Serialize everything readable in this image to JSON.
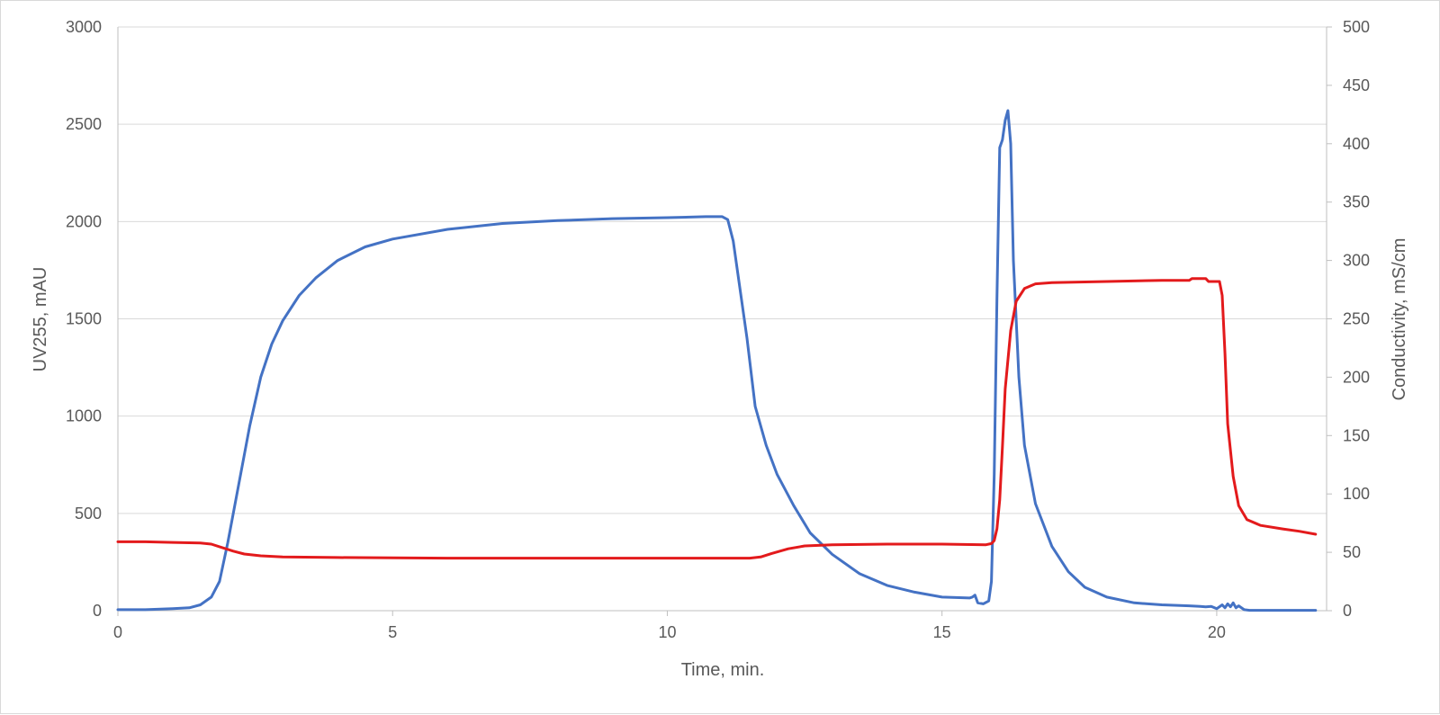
{
  "chart_data": {
    "type": "line",
    "title": "",
    "xlabel": "Time, min.",
    "ylabel_left": "UV255, mAU",
    "ylabel_right": "Conductivity, mS/cm",
    "xlim": [
      0,
      22
    ],
    "ylim_left": [
      0,
      3000
    ],
    "ylim_right": [
      0,
      500
    ],
    "x_ticks": [
      "0",
      "5",
      "10",
      "15",
      "20"
    ],
    "y_left_ticks": [
      "0",
      "500",
      "1000",
      "1500",
      "2000",
      "2500",
      "3000"
    ],
    "y_right_ticks": [
      "0",
      "50",
      "100",
      "150",
      "200",
      "250",
      "300",
      "350",
      "400",
      "450",
      "500"
    ],
    "grid": "horizontal",
    "legend": "none",
    "series": [
      {
        "axis": "left",
        "color": "#4472C4",
        "points": [
          [
            0,
            5
          ],
          [
            0.5,
            5
          ],
          [
            1,
            10
          ],
          [
            1.3,
            15
          ],
          [
            1.5,
            30
          ],
          [
            1.7,
            70
          ],
          [
            1.85,
            150
          ],
          [
            2.0,
            350
          ],
          [
            2.2,
            650
          ],
          [
            2.4,
            950
          ],
          [
            2.6,
            1200
          ],
          [
            2.8,
            1370
          ],
          [
            3.0,
            1490
          ],
          [
            3.3,
            1620
          ],
          [
            3.6,
            1710
          ],
          [
            4.0,
            1800
          ],
          [
            4.5,
            1870
          ],
          [
            5.0,
            1910
          ],
          [
            6.0,
            1960
          ],
          [
            7.0,
            1990
          ],
          [
            8.0,
            2005
          ],
          [
            9.0,
            2015
          ],
          [
            10.0,
            2020
          ],
          [
            10.7,
            2025
          ],
          [
            11.0,
            2025
          ],
          [
            11.1,
            2010
          ],
          [
            11.2,
            1900
          ],
          [
            11.3,
            1700
          ],
          [
            11.45,
            1400
          ],
          [
            11.6,
            1050
          ],
          [
            11.8,
            850
          ],
          [
            12.0,
            700
          ],
          [
            12.3,
            540
          ],
          [
            12.6,
            400
          ],
          [
            13.0,
            290
          ],
          [
            13.5,
            190
          ],
          [
            14.0,
            130
          ],
          [
            14.5,
            95
          ],
          [
            15.0,
            70
          ],
          [
            15.5,
            65
          ],
          [
            15.55,
            70
          ],
          [
            15.6,
            80
          ],
          [
            15.65,
            40
          ],
          [
            15.75,
            35
          ],
          [
            15.85,
            50
          ],
          [
            15.9,
            150
          ],
          [
            15.95,
            700
          ],
          [
            16.0,
            1600
          ],
          [
            16.05,
            2380
          ],
          [
            16.1,
            2420
          ],
          [
            16.15,
            2520
          ],
          [
            16.2,
            2570
          ],
          [
            16.25,
            2400
          ],
          [
            16.3,
            1800
          ],
          [
            16.4,
            1200
          ],
          [
            16.5,
            850
          ],
          [
            16.7,
            550
          ],
          [
            17.0,
            330
          ],
          [
            17.3,
            200
          ],
          [
            17.6,
            120
          ],
          [
            18.0,
            70
          ],
          [
            18.5,
            40
          ],
          [
            19.0,
            30
          ],
          [
            19.5,
            25
          ],
          [
            19.7,
            22
          ],
          [
            19.8,
            20
          ],
          [
            19.9,
            22
          ],
          [
            20.0,
            10
          ],
          [
            20.1,
            30
          ],
          [
            20.15,
            15
          ],
          [
            20.2,
            35
          ],
          [
            20.25,
            20
          ],
          [
            20.3,
            40
          ],
          [
            20.35,
            15
          ],
          [
            20.4,
            25
          ],
          [
            20.5,
            5
          ],
          [
            20.6,
            2
          ],
          [
            21.0,
            2
          ],
          [
            21.8,
            2
          ]
        ]
      },
      {
        "axis": "right",
        "color": "#E31A1C",
        "points": [
          [
            0,
            59
          ],
          [
            0.5,
            59
          ],
          [
            1.0,
            58.5
          ],
          [
            1.5,
            58
          ],
          [
            1.7,
            57
          ],
          [
            1.9,
            54
          ],
          [
            2.1,
            51
          ],
          [
            2.3,
            48.5
          ],
          [
            2.6,
            47
          ],
          [
            3.0,
            46
          ],
          [
            4.0,
            45.5
          ],
          [
            6.0,
            45
          ],
          [
            8.0,
            45
          ],
          [
            10.0,
            45
          ],
          [
            11.5,
            45
          ],
          [
            11.7,
            46
          ],
          [
            11.9,
            49
          ],
          [
            12.2,
            53
          ],
          [
            12.5,
            55.5
          ],
          [
            13.0,
            56.5
          ],
          [
            14.0,
            57
          ],
          [
            15.0,
            57
          ],
          [
            15.8,
            56.5
          ],
          [
            15.9,
            57.5
          ],
          [
            15.95,
            60
          ],
          [
            16.0,
            70
          ],
          [
            16.05,
            95
          ],
          [
            16.1,
            140
          ],
          [
            16.15,
            190
          ],
          [
            16.25,
            240
          ],
          [
            16.35,
            265
          ],
          [
            16.5,
            276
          ],
          [
            16.7,
            280
          ],
          [
            17.0,
            281
          ],
          [
            18.0,
            282
          ],
          [
            19.0,
            283
          ],
          [
            19.5,
            283
          ],
          [
            19.55,
            284.5
          ],
          [
            19.8,
            284.5
          ],
          [
            19.85,
            282
          ],
          [
            20.05,
            282
          ],
          [
            20.1,
            270
          ],
          [
            20.15,
            220
          ],
          [
            20.2,
            160
          ],
          [
            20.3,
            115
          ],
          [
            20.4,
            90
          ],
          [
            20.55,
            78
          ],
          [
            20.8,
            73
          ],
          [
            21.2,
            70
          ],
          [
            21.5,
            68
          ],
          [
            21.8,
            65.5
          ]
        ]
      }
    ]
  }
}
